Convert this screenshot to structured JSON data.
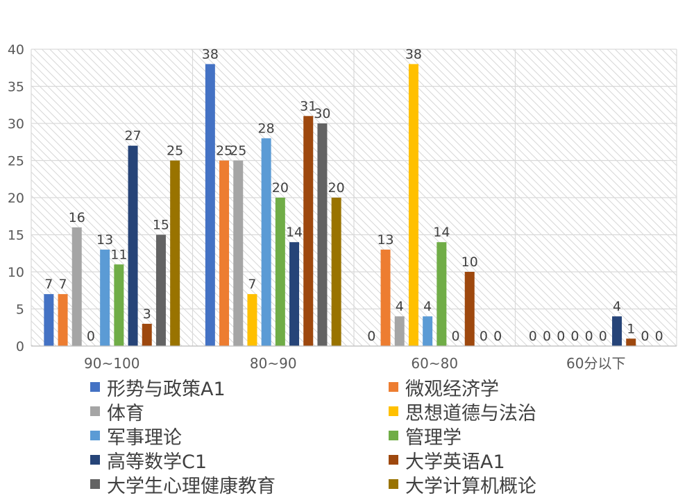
{
  "chart_data": {
    "type": "bar",
    "title": "",
    "xlabel": "",
    "ylabel": "",
    "ylim": [
      0,
      40
    ],
    "yticks": [
      0,
      5,
      10,
      15,
      20,
      25,
      30,
      35,
      40
    ],
    "categories": [
      "90~100",
      "80~90",
      "60~80",
      "60分以下"
    ],
    "series": [
      {
        "name": "形势与政策A1",
        "color": "#4472C4",
        "values": [
          7,
          38,
          0,
          0
        ]
      },
      {
        "name": "微观经济学",
        "color": "#ED7D31",
        "values": [
          7,
          25,
          13,
          0
        ]
      },
      {
        "name": "体育",
        "color": "#A5A5A5",
        "values": [
          16,
          25,
          4,
          0
        ]
      },
      {
        "name": "思想道德与法治",
        "color": "#FFC000",
        "values": [
          0,
          7,
          38,
          0
        ]
      },
      {
        "name": "军事理论",
        "color": "#5B9BD5",
        "values": [
          13,
          28,
          4,
          0
        ]
      },
      {
        "name": "管理学",
        "color": "#70AD47",
        "values": [
          11,
          20,
          14,
          0
        ]
      },
      {
        "name": "高等数学C1",
        "color": "#264478",
        "values": [
          27,
          14,
          0,
          4
        ]
      },
      {
        "name": "大学英语A1",
        "color": "#9E480E",
        "values": [
          3,
          31,
          10,
          1
        ]
      },
      {
        "name": "大学生心理健康教育",
        "color": "#636363",
        "values": [
          15,
          30,
          0,
          0
        ]
      },
      {
        "name": "大学计算机概论",
        "color": "#997300",
        "values": [
          25,
          20,
          0,
          0
        ]
      }
    ],
    "legend_position": "bottom"
  }
}
